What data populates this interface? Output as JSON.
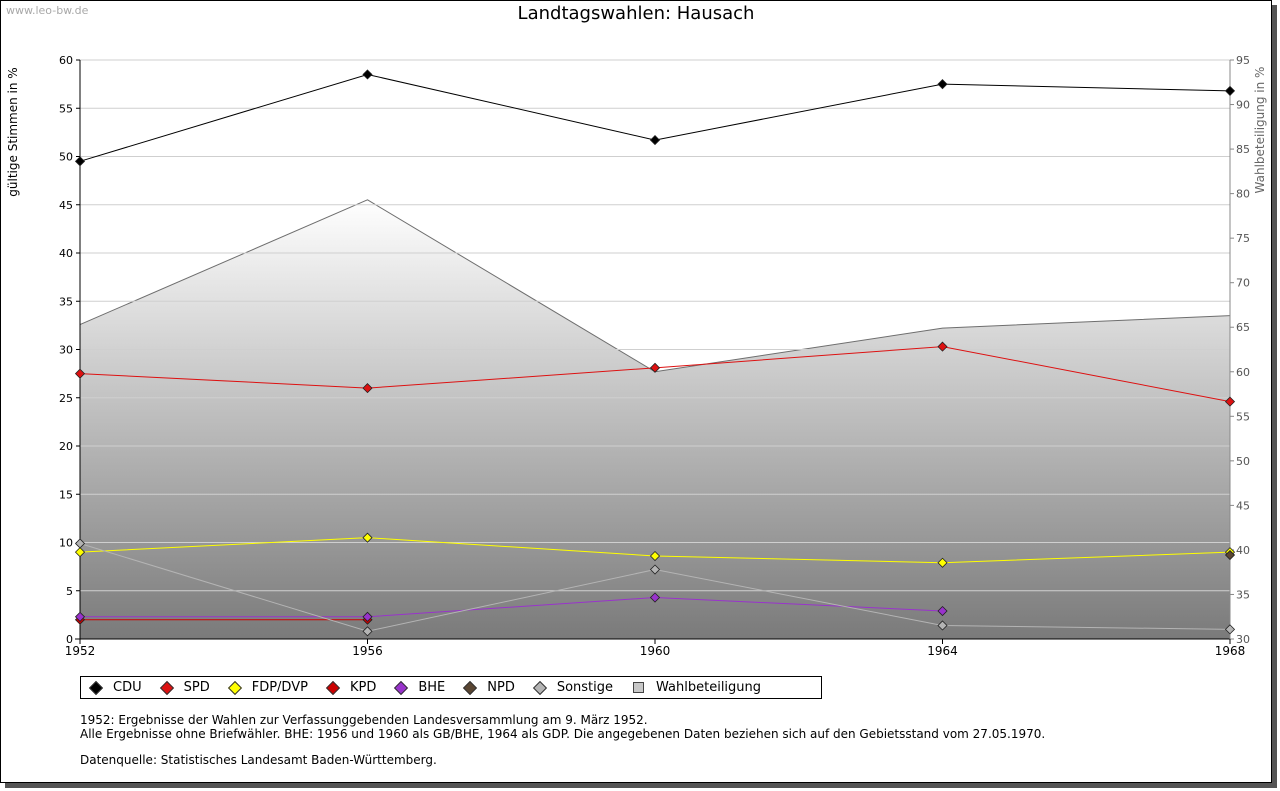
{
  "watermark": "www.leo-bw.de",
  "title": "Landtagswahlen: Hausach",
  "chart_data": {
    "type": "line",
    "title": "Landtagswahlen: Hausach",
    "ylabel": "gültige Stimmen in %",
    "y2label": "Wahlbeteiligung in %",
    "x": [
      1952,
      1956,
      1960,
      1964,
      1968
    ],
    "xticks": [
      "1952",
      "1956",
      "1960",
      "1964",
      "1968"
    ],
    "ylim": [
      0,
      60
    ],
    "yticks": [
      0,
      5,
      10,
      15,
      20,
      25,
      30,
      35,
      40,
      45,
      50,
      55,
      60
    ],
    "y2lim": [
      30,
      95
    ],
    "y2ticks": [
      30,
      35,
      40,
      45,
      50,
      55,
      60,
      65,
      70,
      75,
      80,
      85,
      90,
      95
    ],
    "grid": true,
    "legend_position": "bottom",
    "series": [
      {
        "name": "CDU",
        "color": "#000000",
        "values": [
          49.5,
          58.5,
          51.7,
          57.5,
          56.8
        ]
      },
      {
        "name": "SPD",
        "color": "#dd1111",
        "values": [
          27.5,
          26.0,
          28.1,
          30.3,
          24.6
        ]
      },
      {
        "name": "FDP/DVP",
        "color": "#ffff00",
        "values": [
          9.0,
          10.5,
          8.6,
          7.9,
          9.0
        ]
      },
      {
        "name": "KPD",
        "color": "#cc0000",
        "values": [
          2.0,
          2.0,
          null,
          null,
          null
        ]
      },
      {
        "name": "BHE",
        "color": "#9933cc",
        "values": [
          2.3,
          2.3,
          4.3,
          2.9,
          null
        ]
      },
      {
        "name": "NPD",
        "color": "#5a4632",
        "values": [
          null,
          null,
          null,
          null,
          8.7
        ]
      },
      {
        "name": "Sonstige",
        "color": "#b4b4b4",
        "values": [
          9.9,
          0.8,
          7.2,
          1.4,
          1.0
        ]
      },
      {
        "name": "Wahlbeteiligung",
        "color": "#c8c8c8",
        "axis": "right",
        "type": "area",
        "values": [
          65.3,
          79.3,
          60.0,
          64.9,
          66.3
        ]
      }
    ]
  },
  "notes": {
    "line1": "1952: Ergebnisse der Wahlen zur Verfassunggebenden Landesversammlung am 9. März 1952.",
    "line2": "Alle Ergebnisse ohne Briefwähler. BHE: 1956 und 1960 als GB/BHE, 1964 als GDP. Die angegebenen Daten beziehen sich auf den Gebietsstand vom 27.05.1970.",
    "source": "Datenquelle: Statistisches Landesamt Baden-Württemberg."
  }
}
